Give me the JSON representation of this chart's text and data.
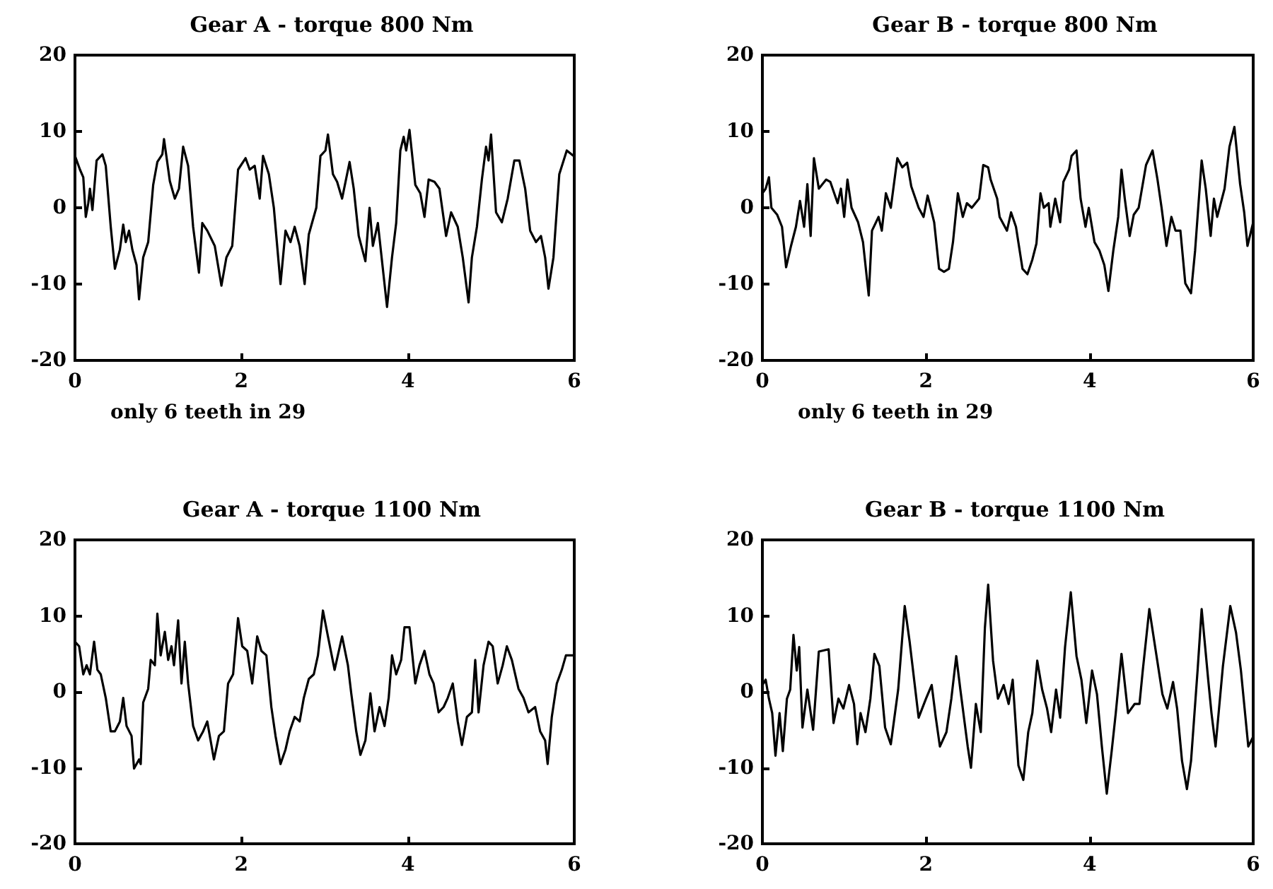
{
  "chart_data": [
    {
      "type": "line",
      "title": "Gear A - torque 800 Nm",
      "color": "#000000",
      "xlim": [
        0,
        6
      ],
      "xticks": [
        0,
        2,
        4,
        6
      ],
      "ylim": [
        -20,
        20
      ],
      "yticks": [
        -20,
        -10,
        0,
        10,
        20
      ],
      "annotations": [
        "only 6 teeth in 29"
      ],
      "x": [
        0.0,
        0.06,
        0.1,
        0.13,
        0.16,
        0.18,
        0.21,
        0.26,
        0.33,
        0.37,
        0.43,
        0.48,
        0.54,
        0.58,
        0.61,
        0.65,
        0.69,
        0.74,
        0.77,
        0.82,
        0.88,
        0.94,
        0.99,
        1.05,
        1.07,
        1.14,
        1.2,
        1.25,
        1.3,
        1.36,
        1.42,
        1.49,
        1.53,
        1.59,
        1.68,
        1.76,
        1.82,
        1.89,
        1.96,
        2.05,
        2.1,
        2.16,
        2.22,
        2.26,
        2.33,
        2.39,
        2.47,
        2.53,
        2.59,
        2.64,
        2.7,
        2.76,
        2.81,
        2.9,
        2.95,
        3.01,
        3.04,
        3.1,
        3.15,
        3.21,
        3.3,
        3.35,
        3.41,
        3.49,
        3.54,
        3.58,
        3.64,
        3.68,
        3.75,
        3.81,
        3.86,
        3.91,
        3.95,
        3.98,
        4.02,
        4.09,
        4.15,
        4.2,
        4.25,
        4.32,
        4.38,
        4.46,
        4.52,
        4.6,
        4.66,
        4.73,
        4.77,
        4.83,
        4.89,
        4.94,
        4.97,
        5.0,
        5.06,
        5.13,
        5.2,
        5.28,
        5.34,
        5.41,
        5.47,
        5.54,
        5.6,
        5.65,
        5.69,
        5.75,
        5.82,
        5.91,
        5.99
      ],
      "values": [
        6.8,
        5,
        4,
        -1.2,
        0.6,
        2.5,
        -0.3,
        6.2,
        7,
        5.5,
        -2.5,
        -8,
        -5.5,
        -2.2,
        -4.5,
        -3,
        -5.5,
        -7.5,
        -12,
        -6.5,
        -4.5,
        3,
        6,
        7,
        9,
        3.5,
        1.2,
        2.5,
        8,
        5.5,
        -2.5,
        -8.5,
        -2,
        -3,
        -5,
        -10.2,
        -6.5,
        -5,
        5,
        6.5,
        5,
        5.5,
        1.2,
        6.8,
        4.4,
        0,
        -10,
        -3,
        -4.5,
        -2.5,
        -5,
        -10,
        -3.5,
        0,
        6.8,
        7.5,
        9.6,
        4.4,
        3.4,
        1.2,
        6,
        2.5,
        -3.7,
        -7,
        0,
        -5,
        -2,
        -6,
        -13,
        -6.5,
        -2,
        7.5,
        9.3,
        7.5,
        10.2,
        3,
        1.9,
        -1.2,
        3.7,
        3.4,
        2.5,
        -3.7,
        -0.6,
        -2.5,
        -6.5,
        -12.4,
        -6.5,
        -2.5,
        3.7,
        8,
        6.2,
        9.6,
        -0.6,
        -1.9,
        1.2,
        6.2,
        6.2,
        2.5,
        -3,
        -4.5,
        -3.7,
        -6.5,
        -10.6,
        -6.5,
        4.4,
        7.5,
        6.8
      ]
    },
    {
      "type": "line",
      "title": "Gear B - torque 800 Nm",
      "color": "#000000",
      "xlim": [
        0,
        6
      ],
      "xticks": [
        0,
        2,
        4,
        6
      ],
      "ylim": [
        -20,
        20
      ],
      "yticks": [
        -20,
        -10,
        0,
        10,
        20
      ],
      "annotations": [
        "only 6 teeth in 29"
      ],
      "x": [
        0.0,
        0.04,
        0.08,
        0.11,
        0.18,
        0.24,
        0.29,
        0.35,
        0.41,
        0.46,
        0.51,
        0.55,
        0.59,
        0.63,
        0.69,
        0.78,
        0.83,
        0.92,
        0.96,
        1.0,
        1.04,
        1.09,
        1.17,
        1.23,
        1.3,
        1.34,
        1.42,
        1.46,
        1.51,
        1.57,
        1.65,
        1.71,
        1.77,
        1.82,
        1.91,
        1.97,
        2.02,
        2.1,
        2.16,
        2.22,
        2.28,
        2.33,
        2.39,
        2.45,
        2.5,
        2.56,
        2.65,
        2.7,
        2.76,
        2.79,
        2.87,
        2.9,
        2.99,
        3.04,
        3.1,
        3.18,
        3.24,
        3.3,
        3.35,
        3.4,
        3.44,
        3.5,
        3.52,
        3.58,
        3.64,
        3.68,
        3.75,
        3.78,
        3.84,
        3.89,
        3.95,
        3.99,
        4.06,
        4.12,
        4.18,
        4.23,
        4.29,
        4.35,
        4.39,
        4.43,
        4.49,
        4.54,
        4.6,
        4.69,
        4.77,
        4.83,
        4.88,
        4.94,
        5.0,
        5.05,
        5.11,
        5.17,
        5.24,
        5.29,
        5.37,
        5.42,
        5.48,
        5.52,
        5.56,
        5.65,
        5.71,
        5.77,
        5.84,
        5.89,
        5.93,
        6.0
      ],
      "values": [
        1.9,
        2.5,
        4,
        0,
        -0.9,
        -2.5,
        -7.8,
        -5,
        -2.5,
        0.9,
        -2.5,
        3.1,
        -3.7,
        6.5,
        2.5,
        3.7,
        3.4,
        0.6,
        2.5,
        -1.2,
        3.7,
        0,
        -1.9,
        -4.5,
        -11.5,
        -3,
        -1.2,
        -3,
        1.9,
        0,
        6.5,
        5.3,
        5.9,
        2.8,
        0,
        -1.2,
        1.6,
        -1.9,
        -8,
        -8.4,
        -8,
        -4.5,
        1.9,
        -1.2,
        0.6,
        0,
        1.2,
        5.6,
        5.3,
        3.7,
        1.2,
        -1.2,
        -3,
        -0.6,
        -2.5,
        -8,
        -8.7,
        -6.8,
        -4.7,
        1.9,
        0,
        0.6,
        -2.5,
        1.2,
        -1.9,
        3.4,
        5,
        6.8,
        7.5,
        1.2,
        -2.5,
        0,
        -4.5,
        -5.6,
        -7.5,
        -10.9,
        -5.6,
        -1.2,
        5,
        1.2,
        -3.7,
        -0.9,
        0,
        5.6,
        7.5,
        3.7,
        0,
        -5,
        -1.2,
        -3,
        -3,
        -9.9,
        -11.2,
        -5.6,
        6.2,
        2.5,
        -3.7,
        1.2,
        -1.2,
        2.5,
        8,
        10.6,
        3.1,
        -0.6,
        -5,
        -1.9
      ]
    },
    {
      "type": "line",
      "title": "Gear A - torque 1100 Nm",
      "color": "#000000",
      "xlim": [
        0,
        6
      ],
      "xticks": [
        0,
        2,
        4,
        6
      ],
      "ylim": [
        -20,
        20
      ],
      "yticks": [
        -20,
        -10,
        0,
        10,
        20
      ],
      "x": [
        0.0,
        0.05,
        0.1,
        0.14,
        0.18,
        0.23,
        0.27,
        0.31,
        0.37,
        0.43,
        0.48,
        0.54,
        0.58,
        0.62,
        0.68,
        0.71,
        0.77,
        0.79,
        0.82,
        0.88,
        0.91,
        0.96,
        0.99,
        1.03,
        1.08,
        1.12,
        1.16,
        1.19,
        1.24,
        1.28,
        1.32,
        1.36,
        1.42,
        1.48,
        1.54,
        1.59,
        1.67,
        1.73,
        1.79,
        1.84,
        1.9,
        1.96,
        2.01,
        2.07,
        2.13,
        2.19,
        2.24,
        2.3,
        2.36,
        2.41,
        2.47,
        2.53,
        2.58,
        2.64,
        2.7,
        2.75,
        2.81,
        2.87,
        2.92,
        2.98,
        3.04,
        3.12,
        3.21,
        3.28,
        3.32,
        3.38,
        3.43,
        3.49,
        3.55,
        3.6,
        3.66,
        3.72,
        3.77,
        3.81,
        3.86,
        3.92,
        3.96,
        4.02,
        4.09,
        4.14,
        4.2,
        4.26,
        4.31,
        4.37,
        4.43,
        4.48,
        4.54,
        4.6,
        4.65,
        4.71,
        4.77,
        4.81,
        4.85,
        4.91,
        4.97,
        5.02,
        5.08,
        5.14,
        5.19,
        5.25,
        5.33,
        5.39,
        5.45,
        5.53,
        5.59,
        5.65,
        5.68,
        5.73,
        5.79,
        5.85,
        5.9,
        6.0
      ],
      "values": [
        6.6,
        6,
        2.3,
        3.5,
        2.3,
        6.6,
        2.9,
        2.3,
        -0.8,
        -5.2,
        -5.2,
        -3.9,
        -0.8,
        -4.5,
        -5.8,
        -10.1,
        -8.9,
        -9.5,
        -1.4,
        0.4,
        4.2,
        3.5,
        10.3,
        4.8,
        7.9,
        4.2,
        6,
        3.5,
        9.4,
        1.1,
        6.6,
        1.1,
        -4.5,
        -6.4,
        -5.2,
        -3.9,
        -8.9,
        -5.8,
        -5.2,
        1.1,
        2.3,
        9.7,
        6,
        5.4,
        1.1,
        7.3,
        5.4,
        4.8,
        -2,
        -5.8,
        -9.5,
        -7.6,
        -5.2,
        -3.3,
        -3.9,
        -0.8,
        1.7,
        2.3,
        4.8,
        10.7,
        7.3,
        2.9,
        7.3,
        3.5,
        -0.2,
        -5.2,
        -8.3,
        -6.4,
        -0.2,
        -5.2,
        -2,
        -4.5,
        -0.8,
        4.8,
        2.3,
        4.2,
        8.5,
        8.5,
        1.1,
        3.5,
        5.4,
        2.3,
        1.1,
        -2.7,
        -2,
        -0.8,
        1.1,
        -3.9,
        -7,
        -3.3,
        -2.7,
        4.2,
        -2.7,
        3.5,
        6.6,
        6,
        1.1,
        3.5,
        6,
        4.2,
        0.4,
        -0.8,
        -2.7,
        -2,
        -5.2,
        -6.4,
        -9.5,
        -3.3,
        1.1,
        2.9,
        4.8,
        4.8
      ]
    },
    {
      "type": "line",
      "title": "Gear B - torque 1100 Nm",
      "color": "#000000",
      "xlim": [
        0,
        6
      ],
      "xticks": [
        0,
        2,
        4,
        6
      ],
      "ylim": [
        -20,
        20
      ],
      "yticks": [
        -20,
        -10,
        0,
        10,
        20
      ],
      "x": [
        0.0,
        0.04,
        0.08,
        0.12,
        0.16,
        0.21,
        0.25,
        0.3,
        0.34,
        0.38,
        0.42,
        0.45,
        0.49,
        0.55,
        0.62,
        0.69,
        0.81,
        0.87,
        0.93,
        0.99,
        1.06,
        1.12,
        1.16,
        1.2,
        1.26,
        1.32,
        1.37,
        1.43,
        1.5,
        1.57,
        1.66,
        1.74,
        1.8,
        1.91,
        2.0,
        2.07,
        2.12,
        2.17,
        2.25,
        2.31,
        2.37,
        2.42,
        2.51,
        2.55,
        2.61,
        2.67,
        2.72,
        2.76,
        2.82,
        2.88,
        2.95,
        3.01,
        3.06,
        3.13,
        3.19,
        3.25,
        3.3,
        3.36,
        3.42,
        3.48,
        3.53,
        3.59,
        3.64,
        3.7,
        3.77,
        3.84,
        3.9,
        3.96,
        4.03,
        4.09,
        4.15,
        4.21,
        4.27,
        4.32,
        4.39,
        4.47,
        4.55,
        4.61,
        4.65,
        4.73,
        4.81,
        4.89,
        4.95,
        5.02,
        5.07,
        5.13,
        5.19,
        5.24,
        5.32,
        5.37,
        5.45,
        5.49,
        5.54,
        5.63,
        5.72,
        5.79,
        5.85,
        5.94,
        6.0
      ],
      "values": [
        0.9,
        1.6,
        -0.9,
        -2.8,
        -8.4,
        -2.8,
        -7.8,
        -0.9,
        0.3,
        7.5,
        2.8,
        5.9,
        -4.7,
        0.3,
        -5,
        5.3,
        5.6,
        -4.1,
        -0.9,
        -2.2,
        0.9,
        -1.6,
        -6.9,
        -2.8,
        -5.3,
        -0.9,
        5,
        3.4,
        -4.7,
        -6.9,
        0.3,
        11.3,
        6.6,
        -3.4,
        -0.9,
        0.9,
        -3.4,
        -7.2,
        -5.3,
        -0.9,
        4.7,
        0.3,
        -7.2,
        -10,
        -1.6,
        -5.3,
        8.4,
        14.1,
        4.1,
        -0.9,
        0.9,
        -1.6,
        1.6,
        -9.7,
        -11.6,
        -5.3,
        -2.8,
        4.1,
        0.3,
        -2.2,
        -5.3,
        0.3,
        -3.4,
        5.9,
        13.1,
        4.7,
        1.6,
        -4.1,
        2.8,
        -0.3,
        -7.2,
        -13.4,
        -7.8,
        -2.8,
        5,
        -2.8,
        -1.6,
        -1.6,
        2.8,
        10.9,
        5.3,
        -0.3,
        -2.2,
        1.3,
        -2.2,
        -9.1,
        -12.8,
        -9.1,
        2.8,
        10.9,
        1.6,
        -2.8,
        -7.2,
        3.4,
        11.3,
        7.8,
        2.8,
        -7.2,
        -5.9
      ]
    }
  ]
}
